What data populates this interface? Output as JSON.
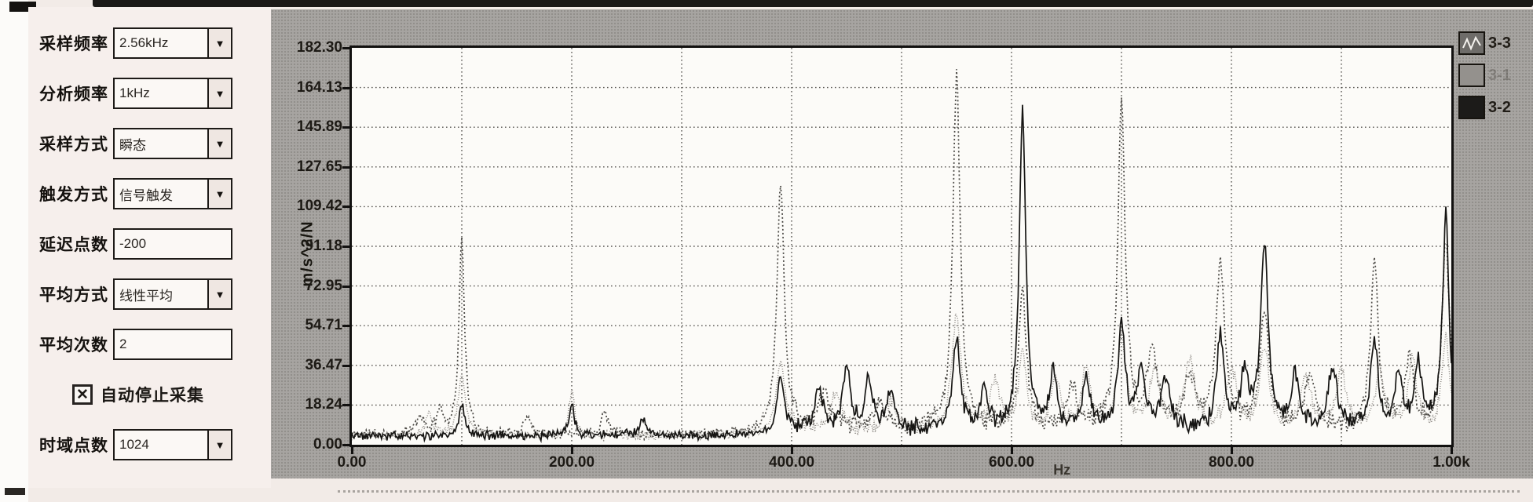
{
  "icons": {
    "dropdown_arrow": "▼",
    "checkbox_mark": "✕"
  },
  "panel": {
    "fields": [
      {
        "label": "采样频率",
        "value": "2.56kHz",
        "type": "dropdown"
      },
      {
        "label": "分析频率",
        "value": "1kHz",
        "type": "dropdown"
      },
      {
        "label": "采样方式",
        "value": "瞬态",
        "type": "dropdown"
      },
      {
        "label": "触发方式",
        "value": "信号触发",
        "type": "dropdown"
      },
      {
        "label": "延迟点数",
        "value": "-200",
        "type": "input"
      },
      {
        "label": "平均方式",
        "value": "线性平均",
        "type": "dropdown"
      },
      {
        "label": "平均次数",
        "value": "2",
        "type": "input"
      },
      {
        "label": "时域点数",
        "value": "1024",
        "type": "dropdown"
      }
    ],
    "checkbox": {
      "label": "自动停止采集",
      "checked": true
    }
  },
  "chart_data": {
    "type": "line",
    "title": "",
    "xlabel": "Hz",
    "ylabel": "m/s^2/N",
    "xlim": [
      0,
      1000
    ],
    "ylim": [
      0,
      182.3
    ],
    "x_tick_labels": [
      "0.00",
      "200.00",
      "400.00",
      "600.00",
      "800.00",
      "1.00k"
    ],
    "y_tick_labels": [
      "0.00",
      "18.24",
      "36.47",
      "54.71",
      "72.95",
      "91.18",
      "109.42",
      "127.65",
      "145.89",
      "164.13",
      "182.30"
    ],
    "grid": {
      "x_divisions": 10,
      "y_divisions": 10,
      "style": "dotted",
      "on": true
    },
    "legend": {
      "position": "top-right",
      "entries": [
        {
          "label": "3-3",
          "swatch": "#6e6c69",
          "faint": false,
          "has_line_sample": true
        },
        {
          "label": "3-1",
          "swatch": "#94918d",
          "faint": true,
          "has_line_sample": false
        },
        {
          "label": "3-2",
          "swatch": "#1c1b19",
          "faint": false,
          "has_line_sample": false
        }
      ]
    },
    "series": [
      {
        "name": "3-3",
        "color": "#4a4844",
        "dash": "2 3",
        "width": 1.7,
        "seed": 11,
        "noise_floor": 3.5,
        "noise_jitter": 2.5,
        "noise_boost": [
          400,
          2.6
        ],
        "peaks": [
          [
            62,
            8,
            4
          ],
          [
            80,
            12,
            3
          ],
          [
            100,
            90,
            3
          ],
          [
            160,
            8,
            4
          ],
          [
            230,
            10,
            4
          ],
          [
            390,
            116,
            4
          ],
          [
            430,
            16,
            6
          ],
          [
            480,
            12,
            6
          ],
          [
            550,
            162,
            4
          ],
          [
            610,
            64,
            4
          ],
          [
            655,
            20,
            5
          ],
          [
            700,
            150,
            4
          ],
          [
            728,
            36,
            5
          ],
          [
            762,
            22,
            6
          ],
          [
            790,
            74,
            5
          ],
          [
            830,
            52,
            5
          ],
          [
            872,
            24,
            6
          ],
          [
            930,
            78,
            4
          ],
          [
            962,
            32,
            5
          ],
          [
            995,
            88,
            4
          ]
        ]
      },
      {
        "name": "3-1",
        "color": "#8d8984",
        "dash": "1 2",
        "width": 1.5,
        "seed": 23,
        "noise_floor": 3.0,
        "noise_jitter": 2.2,
        "noise_boost": [
          400,
          2.4
        ],
        "peaks": [
          [
            70,
            10,
            4
          ],
          [
            100,
            28,
            4
          ],
          [
            200,
            20,
            3
          ],
          [
            390,
            34,
            5
          ],
          [
            440,
            18,
            6
          ],
          [
            490,
            14,
            6
          ],
          [
            550,
            54,
            5
          ],
          [
            585,
            22,
            5
          ],
          [
            610,
            38,
            4
          ],
          [
            640,
            24,
            5
          ],
          [
            668,
            28,
            5
          ],
          [
            700,
            44,
            5
          ],
          [
            730,
            26,
            6
          ],
          [
            762,
            32,
            6
          ],
          [
            800,
            28,
            6
          ],
          [
            830,
            38,
            5
          ],
          [
            868,
            24,
            6
          ],
          [
            900,
            26,
            6
          ],
          [
            935,
            28,
            5
          ],
          [
            965,
            32,
            5
          ],
          [
            995,
            44,
            4
          ]
        ]
      },
      {
        "name": "3-2",
        "color": "#161513",
        "dash": "",
        "width": 1.7,
        "seed": 5,
        "noise_floor": 3.0,
        "noise_jitter": 2.2,
        "noise_boost": [
          400,
          2.8
        ],
        "peaks": [
          [
            100,
            15,
            3
          ],
          [
            200,
            14,
            3
          ],
          [
            265,
            8,
            4
          ],
          [
            390,
            28,
            4
          ],
          [
            425,
            22,
            4
          ],
          [
            450,
            30,
            4
          ],
          [
            470,
            24,
            4
          ],
          [
            490,
            18,
            4
          ],
          [
            550,
            42,
            4
          ],
          [
            575,
            18,
            4
          ],
          [
            610,
            146,
            3.5
          ],
          [
            638,
            26,
            4
          ],
          [
            668,
            24,
            4
          ],
          [
            700,
            48,
            4
          ],
          [
            718,
            28,
            4
          ],
          [
            740,
            24,
            5
          ],
          [
            790,
            44,
            4
          ],
          [
            812,
            26,
            4
          ],
          [
            830,
            86,
            4
          ],
          [
            858,
            24,
            5
          ],
          [
            892,
            28,
            5
          ],
          [
            930,
            42,
            4
          ],
          [
            952,
            26,
            4
          ],
          [
            970,
            30,
            4
          ],
          [
            995,
            98,
            3.5
          ]
        ]
      }
    ]
  }
}
